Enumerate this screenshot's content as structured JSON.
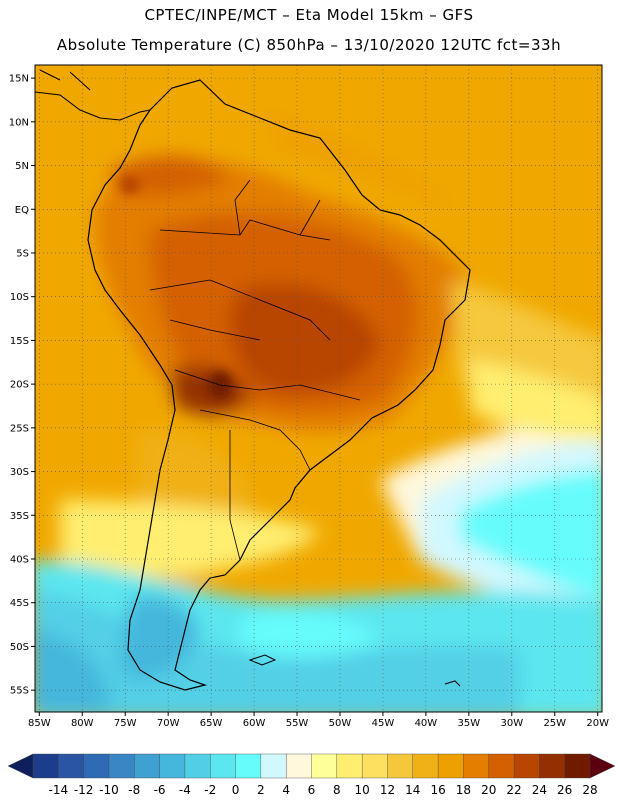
{
  "header": {
    "line1": "CPTEC/INPE/MCT –  Eta Model 15km – GFS",
    "line2": "Absolute Temperature (C) 850hPa – 13/10/2020 12UTC fct=33h"
  },
  "map": {
    "lat_labels": [
      "15N",
      "10N",
      "5N",
      "EQ",
      "5S",
      "10S",
      "15S",
      "20S",
      "25S",
      "30S",
      "35S",
      "40S",
      "45S",
      "50S",
      "55S"
    ],
    "lon_labels": [
      "85W",
      "80W",
      "75W",
      "70W",
      "65W",
      "60W",
      "55W",
      "50W",
      "45W",
      "40W",
      "35W",
      "30W",
      "25W",
      "20W"
    ],
    "lat_range": [
      -57.5,
      16.5
    ],
    "lon_range": [
      -85.5,
      -19.5
    ],
    "grid": "dotted",
    "ocean_base_color": "#f0a800",
    "coast_color": "#000000"
  },
  "colorbar": {
    "levels": [
      "-14",
      "-12",
      "-10",
      "-8",
      "-6",
      "-4",
      "-2",
      "0",
      "2",
      "4",
      "6",
      "8",
      "10",
      "12",
      "14",
      "16",
      "18",
      "20",
      "22",
      "24",
      "26",
      "28"
    ],
    "colors": [
      "#1c3c8c",
      "#2a55a4",
      "#2f6bb4",
      "#3a86c4",
      "#3fa0d2",
      "#45b6dc",
      "#52cfe6",
      "#5ce6ef",
      "#66fcfc",
      "#d2f8ff",
      "#fff8dc",
      "#ffff99",
      "#ffee70",
      "#fde060",
      "#f5c83c",
      "#f0b018",
      "#eea000",
      "#e37e00",
      "#d46000",
      "#b84500",
      "#943000",
      "#701a00"
    ],
    "end_low": "#0f1f5c",
    "end_high": "#5a0010"
  }
}
